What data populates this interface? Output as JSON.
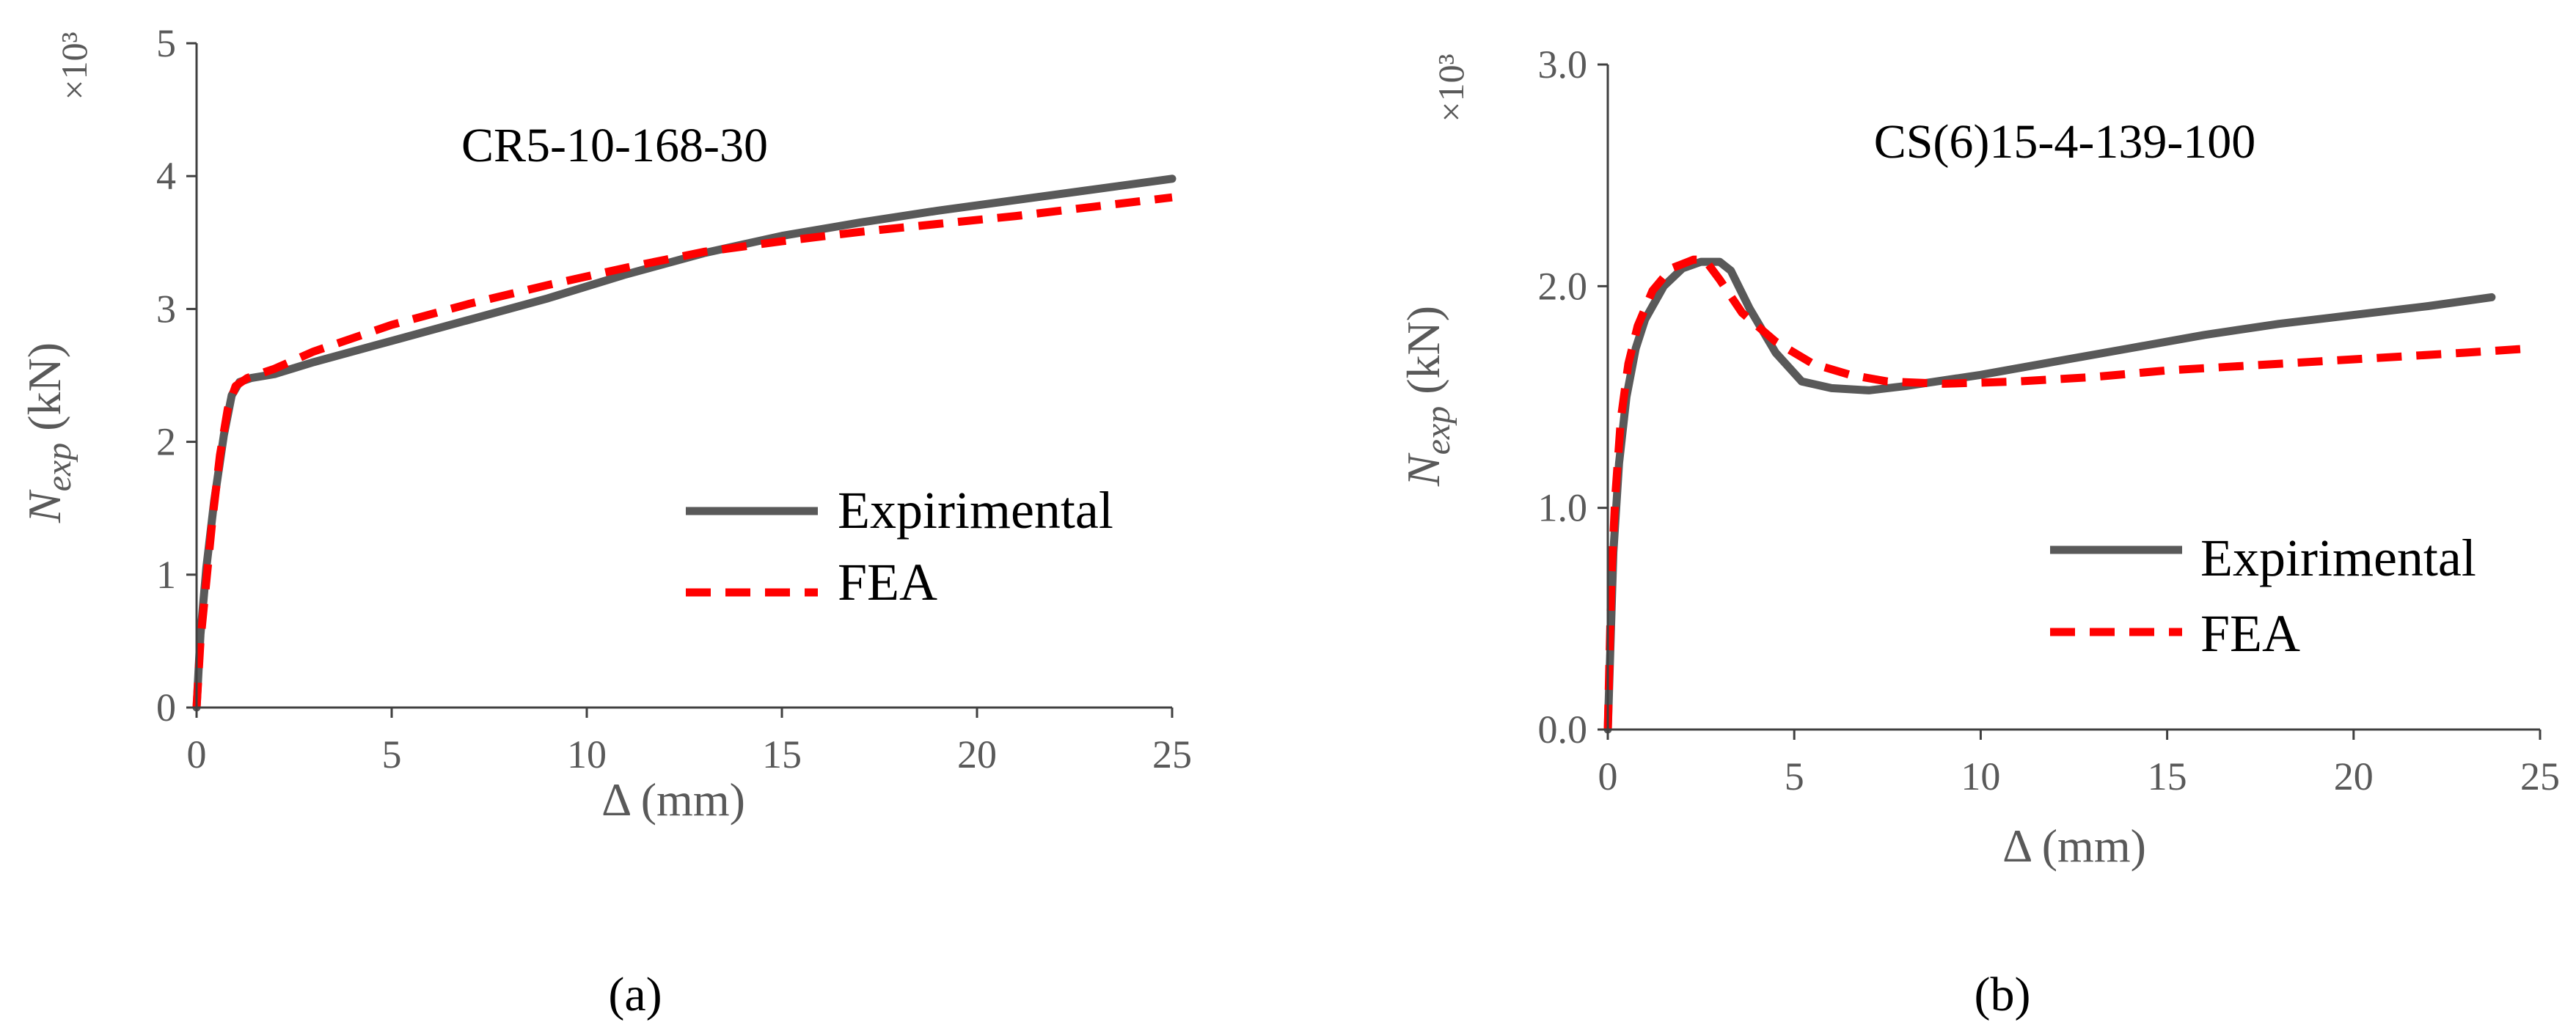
{
  "chart_data": [
    {
      "type": "line",
      "panel_label": "(a)",
      "title": "CR5-10-168-30",
      "xlabel": "Δ (mm)",
      "ylabel_var": "N",
      "ylabel_sub": "exp",
      "ylabel_unit": " (kN)",
      "y_multiplier": "×10³",
      "xlim": [
        0,
        25
      ],
      "ylim": [
        0,
        5
      ],
      "x_ticks": [
        0,
        5,
        10,
        15,
        20,
        25
      ],
      "x_tick_labels": [
        "0",
        "5",
        "10",
        "15",
        "20",
        "25"
      ],
      "y_ticks": [
        0,
        1,
        2,
        3,
        4,
        5
      ],
      "y_tick_labels": [
        "0",
        "1",
        "2",
        "3",
        "4",
        "5"
      ],
      "legend_position": "center-right",
      "series": [
        {
          "name": "Expirimental",
          "color": "#595959",
          "style": "solid",
          "x": [
            0,
            0.1,
            0.25,
            0.45,
            0.7,
            0.9,
            1.1,
            1.4,
            2.0,
            3.0,
            5.0,
            7.0,
            9.0,
            11.0,
            13.0,
            15.0,
            17.0,
            19.0,
            21.0,
            23.0,
            25.0
          ],
          "y": [
            0,
            0.55,
            1.05,
            1.55,
            2.05,
            2.35,
            2.45,
            2.48,
            2.51,
            2.6,
            2.76,
            2.92,
            3.08,
            3.26,
            3.42,
            3.55,
            3.65,
            3.74,
            3.82,
            3.9,
            3.98
          ]
        },
        {
          "name": "FEA",
          "color": "#ff0000",
          "style": "dashed",
          "x": [
            0,
            0.1,
            0.25,
            0.4,
            0.6,
            0.8,
            1.0,
            1.3,
            2.0,
            3.0,
            5.0,
            7.0,
            9.0,
            11.0,
            13.0,
            15.0,
            17.0,
            19.0,
            21.0,
            23.0,
            25.0
          ],
          "y": [
            0,
            0.5,
            0.95,
            1.4,
            1.9,
            2.25,
            2.42,
            2.48,
            2.55,
            2.68,
            2.88,
            3.04,
            3.18,
            3.31,
            3.43,
            3.51,
            3.58,
            3.64,
            3.7,
            3.77,
            3.84
          ]
        }
      ]
    },
    {
      "type": "line",
      "panel_label": "(b)",
      "title": "CS(6)15-4-139-100",
      "xlabel": "Δ (mm)",
      "ylabel_var": "N",
      "ylabel_sub": "exp",
      "ylabel_unit": " (kN)",
      "y_multiplier": "×10³",
      "xlim": [
        0,
        25
      ],
      "ylim": [
        0,
        3.0
      ],
      "x_ticks": [
        0,
        5,
        10,
        15,
        20,
        25
      ],
      "x_tick_labels": [
        "0",
        "5",
        "10",
        "15",
        "20",
        "25"
      ],
      "y_ticks": [
        0,
        1,
        2,
        3
      ],
      "y_tick_labels": [
        "0.0",
        "1.0",
        "2.0",
        "3.0"
      ],
      "legend_position": "center-right",
      "series": [
        {
          "name": "Expirimental",
          "color": "#595959",
          "style": "solid",
          "x": [
            0,
            0.15,
            0.3,
            0.5,
            0.75,
            1.0,
            1.5,
            2.0,
            2.5,
            3.0,
            3.3,
            3.8,
            4.5,
            5.2,
            6.0,
            7.0,
            8.0,
            10.0,
            12.0,
            14.0,
            16.0,
            18.0,
            20.0,
            22.0,
            23.7
          ],
          "y": [
            0,
            0.8,
            1.2,
            1.5,
            1.72,
            1.85,
            2.0,
            2.08,
            2.11,
            2.11,
            2.07,
            1.9,
            1.7,
            1.57,
            1.54,
            1.53,
            1.55,
            1.6,
            1.66,
            1.72,
            1.78,
            1.83,
            1.87,
            1.91,
            1.95
          ]
        },
        {
          "name": "FEA",
          "color": "#ff0000",
          "style": "dashed",
          "x": [
            0,
            0.1,
            0.2,
            0.35,
            0.55,
            0.8,
            1.2,
            1.7,
            2.3,
            2.6,
            3.0,
            3.6,
            4.5,
            5.5,
            6.5,
            7.5,
            9.0,
            11.0,
            13.0,
            15.0,
            17.0,
            19.0,
            21.0,
            23.0,
            24.8
          ],
          "y": [
            0,
            0.7,
            1.05,
            1.4,
            1.65,
            1.82,
            1.98,
            2.08,
            2.12,
            2.12,
            2.03,
            1.88,
            1.75,
            1.65,
            1.6,
            1.57,
            1.56,
            1.57,
            1.59,
            1.62,
            1.64,
            1.66,
            1.68,
            1.7,
            1.72
          ]
        }
      ]
    }
  ]
}
